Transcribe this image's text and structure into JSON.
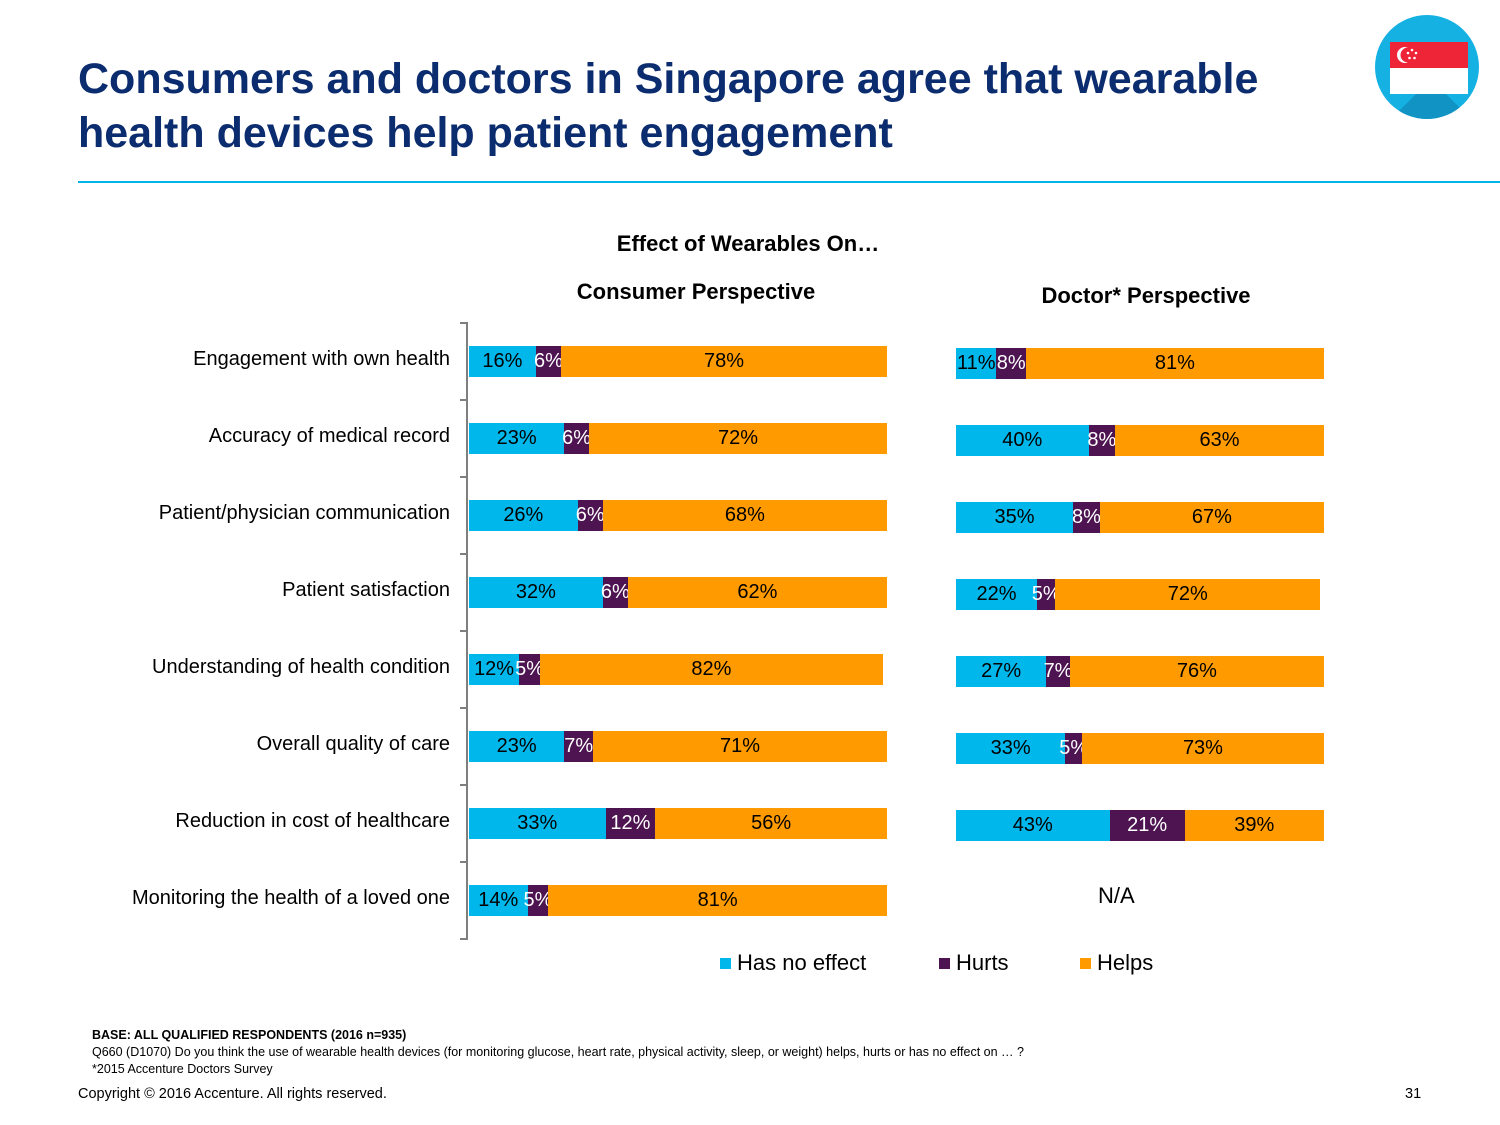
{
  "title": "Consumers and doctors in Singapore agree that wearable health devices help patient engagement",
  "colors": {
    "has_no_effect": "#00b7ec",
    "hurts": "#4e1451",
    "helps": "#ff9a00",
    "title": "#0b2c6e",
    "rule": "#00b3e6"
  },
  "badge": {
    "icon": "singapore-flag-icon"
  },
  "chart_data": {
    "type": "bar",
    "orientation": "horizontal",
    "stacked": true,
    "title": "Effect of Wearables On…",
    "categories": [
      "Engagement with own health",
      "Accuracy of medical record",
      "Patient/physician communication",
      "Patient satisfaction",
      "Understanding of health condition",
      "Overall quality of care",
      "Reduction in cost of healthcare",
      "Monitoring the health of a loved one"
    ],
    "legend_position": "bottom",
    "series_names": [
      "Has no effect",
      "Hurts",
      "Helps"
    ],
    "panels": [
      {
        "title": "Consumer Perspective",
        "series": [
          {
            "name": "Has no effect",
            "values": [
              16,
              23,
              26,
              32,
              12,
              23,
              33,
              14
            ]
          },
          {
            "name": "Hurts",
            "values": [
              6,
              6,
              6,
              6,
              5,
              7,
              12,
              5
            ]
          },
          {
            "name": "Helps",
            "values": [
              78,
              72,
              68,
              62,
              82,
              71,
              56,
              81
            ]
          }
        ]
      },
      {
        "title": "Doctor* Perspective",
        "series": [
          {
            "name": "Has no effect",
            "values": [
              11,
              40,
              35,
              22,
              27,
              33,
              43,
              null
            ]
          },
          {
            "name": "Hurts",
            "values": [
              8,
              8,
              8,
              5,
              7,
              5,
              21,
              null
            ]
          },
          {
            "name": "Helps",
            "values": [
              81,
              63,
              67,
              72,
              76,
              73,
              39,
              null
            ]
          }
        ],
        "na_label": "N/A"
      }
    ]
  },
  "footer": {
    "base": "BASE: ALL QUALIFIED RESPONDENTS (2016 n=935)",
    "question": "Q660 (D1070)  Do you think the use of wearable health devices (for monitoring glucose, heart rate, physical activity, sleep, or weight) helps, hurts or has no effect on … ?",
    "note": "*2015 Accenture Doctors Survey",
    "copyright": "Copyright © 2016 Accenture. All rights reserved.",
    "page_number": "31"
  }
}
